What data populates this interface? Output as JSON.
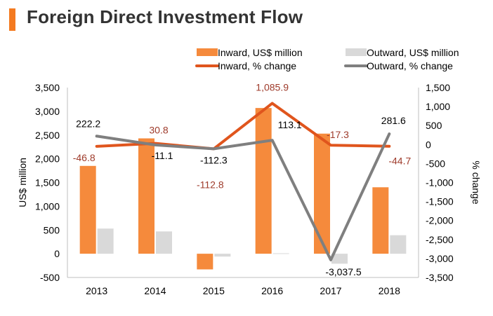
{
  "header": {
    "title": "Foreign Direct Investment Flow"
  },
  "colors": {
    "accent": "#f47a20",
    "inward_bar": "#f58a3c",
    "outward_bar": "#d9d9d9",
    "inward_line": "#e0551d",
    "outward_line": "#7f7f7f",
    "inward_label": "#9e3a2a",
    "outward_label": "#000000",
    "axis_text": "#000000"
  },
  "chart_data": {
    "type": "bar",
    "title": "Foreign Direct Investment Flow",
    "categories": [
      "2013",
      "2014",
      "2015",
      "2016",
      "2017",
      "2018"
    ],
    "series": [
      {
        "name": "Inward, US$ million",
        "kind": "bar",
        "axis": "left",
        "values": [
          1850,
          2430,
          -330,
          3070,
          2530,
          1400
        ]
      },
      {
        "name": "Outward, US$ million",
        "kind": "bar",
        "axis": "left",
        "values": [
          530,
          470,
          -60,
          10,
          -210,
          390
        ]
      },
      {
        "name": "Inward, % change",
        "kind": "line",
        "axis": "right",
        "values": [
          -46.8,
          30.8,
          -112.8,
          1085.9,
          -17.3,
          -44.7
        ],
        "labels": [
          "-46.8",
          "30.8",
          "-112.8",
          "1,085.9",
          "-17.3",
          "-44.7"
        ]
      },
      {
        "name": "Outward, % change",
        "kind": "line",
        "axis": "right",
        "values": [
          222.2,
          -11.1,
          -112.3,
          113.1,
          -3037.5,
          281.6
        ],
        "labels": [
          "222.2",
          "-11.1",
          "-112.3",
          "113.1",
          "-3,037.5",
          "281.6"
        ]
      }
    ],
    "ylabel": "US$ million",
    "y2label": "% change",
    "ylim": [
      -500,
      3500
    ],
    "y2lim": [
      -3500,
      1500
    ],
    "yticks": [
      -500,
      0,
      500,
      1000,
      1500,
      2000,
      2500,
      3000,
      3500
    ],
    "yticklabels": [
      "-500",
      "0",
      "500",
      "1,000",
      "1,500",
      "2,000",
      "2,500",
      "3,000",
      "3,500"
    ],
    "y2ticks": [
      -3500,
      -3000,
      -2500,
      -2000,
      -1500,
      -1000,
      -500,
      0,
      500,
      1000,
      1500
    ],
    "y2ticklabels": [
      "-3,500",
      "-3,000",
      "-2,500",
      "-2,000",
      "-1,500",
      "-1,000",
      "-500",
      "0",
      "500",
      "1,000",
      "1,500"
    ],
    "legend": "top"
  }
}
